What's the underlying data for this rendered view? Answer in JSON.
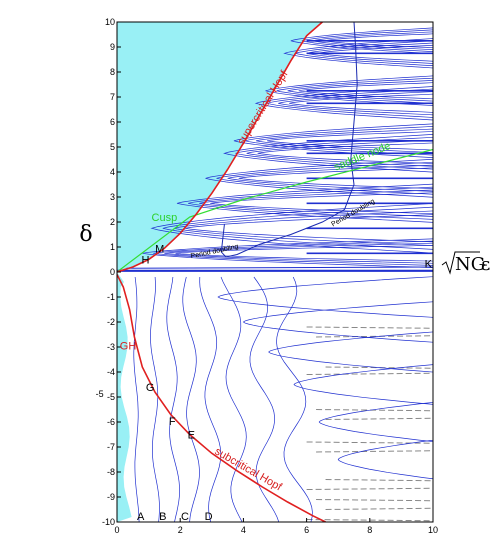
{
  "chart_data": {
    "type": "line",
    "xlabel_radicand": "NG",
    "xlabel_symbol": "ε",
    "ylabel": "δ",
    "xlim": [
      0,
      10
    ],
    "ylim": [
      -10,
      10
    ],
    "x_ticks": [
      "0",
      "2",
      "4",
      "6",
      "8",
      "10"
    ],
    "y_ticks": [
      "-10",
      "-9",
      "-8",
      "-7",
      "-6",
      "-5",
      "-4",
      "-3",
      "-2",
      "-1",
      "0",
      "1",
      "2",
      "3",
      "4",
      "5",
      "6",
      "7",
      "8",
      "9",
      "10"
    ],
    "grid": false,
    "colors": {
      "stable_region": "#99f0f5",
      "hopf": "#e02020",
      "saddle_node": "#33dd33",
      "family": "#2030d0",
      "dashed": "#888888"
    },
    "region_labels": [
      {
        "text": "H",
        "x": 0.9,
        "y": 0.5
      },
      {
        "text": "M",
        "x": 1.35,
        "y": 0.95
      },
      {
        "text": "K",
        "x": 9.85,
        "y": 0.35
      },
      {
        "text": "G",
        "x": 1.05,
        "y": -4.6
      },
      {
        "text": "F",
        "x": 1.75,
        "y": -5.95
      },
      {
        "text": "E",
        "x": 2.35,
        "y": -6.5
      },
      {
        "text": "A",
        "x": 0.75,
        "y": -9.75
      },
      {
        "text": "B",
        "x": 1.45,
        "y": -9.75
      },
      {
        "text": "C",
        "x": 2.15,
        "y": -9.75
      },
      {
        "text": "D",
        "x": 2.9,
        "y": -9.75
      }
    ],
    "annotations": {
      "supercritical": {
        "text": "supercritical Hopf",
        "x": 4.7,
        "y": 6.5,
        "angle": -58
      },
      "saddle_node": {
        "text": "saddle node",
        "x": 7.8,
        "y": 4.5,
        "angle": -22
      },
      "cusp": {
        "text": "Cusp",
        "x": 1.5,
        "y": 2.05
      },
      "pd1": {
        "text": "Period doubling",
        "x": 3.1,
        "y": 0.75,
        "angle": -12
      },
      "pd2": {
        "text": "Period doubling",
        "x": 7.5,
        "y": 2.3,
        "angle": -30
      },
      "gh": {
        "text": "GH",
        "x": 0.35,
        "y": -3.1
      },
      "subcritical": {
        "text": "subcritical Hopf",
        "x": 4.1,
        "y": -8.0,
        "angle": 30
      },
      "stray": {
        "text": "-5",
        "x": -0.55,
        "y": -5.0
      }
    },
    "hopf_curve": {
      "x": [
        0.0,
        0.5,
        1.0,
        1.5,
        2.0,
        2.5,
        3.0,
        3.5,
        4.0,
        4.5,
        5.0,
        5.5,
        6.0,
        6.5
      ],
      "y": [
        0.0,
        0.2,
        0.5,
        0.95,
        1.55,
        2.3,
        3.15,
        4.1,
        5.15,
        6.25,
        7.35,
        8.45,
        9.45,
        10.0
      ]
    },
    "gh_curve": {
      "x": [
        0.0,
        0.2,
        0.4,
        0.55,
        0.8,
        1.2,
        1.7,
        2.3,
        3.0,
        3.8,
        4.6,
        5.4,
        6.2,
        6.6
      ],
      "y": [
        -0.1,
        -0.6,
        -1.5,
        -2.6,
        -3.8,
        -4.8,
        -5.7,
        -6.5,
        -7.25,
        -7.95,
        -8.6,
        -9.2,
        -9.75,
        -10.0
      ]
    },
    "saddle_node_curve": {
      "x": [
        0.0,
        2.3,
        4.0,
        6.0,
        8.0,
        10.0
      ],
      "y": [
        0.0,
        2.2,
        2.9,
        3.6,
        4.25,
        4.9
      ]
    },
    "period_doubling_curve": {
      "x": [
        7.5,
        7.55,
        7.6,
        7.5,
        7.4,
        7.5,
        7.2,
        6.5,
        5.5,
        4.5,
        3.8,
        3.45,
        3.3,
        3.4
      ],
      "y": [
        10.0,
        9.0,
        7.5,
        6.0,
        4.5,
        3.5,
        2.5,
        2.0,
        1.5,
        1.1,
        0.7,
        0.6,
        0.8,
        1.9
      ]
    },
    "upper_families": [
      {
        "y": 0.75,
        "tip_x": 0.8,
        "half_width": 0.75
      },
      {
        "y": 1.75,
        "tip_x": 1.1,
        "half_width": 1.3
      },
      {
        "y": 2.75,
        "tip_x": 1.9,
        "half_width": 1.0
      },
      {
        "y": 3.75,
        "tip_x": 2.8,
        "half_width": 1.0
      },
      {
        "y": 4.75,
        "tip_x": 3.4,
        "half_width": 1.0
      },
      {
        "y": 5.25,
        "tip_x": 3.7,
        "half_width": 0.9
      },
      {
        "y": 6.75,
        "tip_x": 4.4,
        "half_width": 0.9
      },
      {
        "y": 7.25,
        "tip_x": 4.7,
        "half_width": 0.8
      },
      {
        "y": 8.75,
        "tip_x": 5.3,
        "half_width": 0.8
      },
      {
        "y": 9.25,
        "tip_x": 5.5,
        "half_width": 0.7
      }
    ],
    "lower_families": [
      {
        "x0": 0.55,
        "amp": 0.15
      },
      {
        "x0": 1.1,
        "amp": 0.25
      },
      {
        "x0": 1.65,
        "amp": 0.35
      },
      {
        "x0": 2.2,
        "amp": 0.45
      },
      {
        "x0": 2.8,
        "amp": 0.55
      },
      {
        "x0": 3.5,
        "amp": 0.7
      },
      {
        "x0": 4.3,
        "amp": 0.85
      },
      {
        "x0": 5.2,
        "amp": 1.0
      }
    ],
    "lower_shells": [
      {
        "y": -1.0,
        "tip_x": 3.2
      },
      {
        "y": -2.0,
        "tip_x": 4.0
      },
      {
        "y": -3.2,
        "tip_x": 4.8
      },
      {
        "y": -4.5,
        "tip_x": 5.6
      },
      {
        "y": -6.0,
        "tip_x": 6.4
      },
      {
        "y": -7.5,
        "tip_x": 7.0
      }
    ],
    "dashed_lines_y": [
      -2.2,
      -2.6,
      -3.8,
      -4.1,
      -5.5,
      -5.9,
      -6.8,
      -7.2,
      -8.3,
      -8.7,
      -9.1,
      -9.5,
      -9.9
    ]
  }
}
